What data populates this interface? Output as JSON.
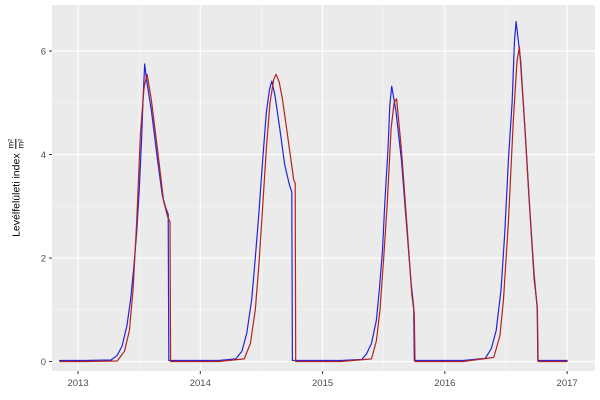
{
  "chart_data": {
    "type": "line",
    "title": "",
    "xlabel": "",
    "ylabel_text": "Levélfelületi index",
    "ylabel_frac_num": "m²",
    "ylabel_frac_den": "m²",
    "x_ticks": [
      2013,
      2014,
      2015,
      2016,
      2017
    ],
    "x_tick_labels": [
      "2013",
      "2014",
      "2015",
      "2016",
      "2017"
    ],
    "x_minor_ticks": [
      2013.5,
      2014.5,
      2015.5,
      2016.5
    ],
    "y_ticks": [
      0,
      2,
      4,
      6
    ],
    "y_tick_labels": [
      "0",
      "2",
      "4",
      "6"
    ],
    "y_minor_ticks": [
      1,
      3,
      5
    ],
    "x_range": [
      2012.787,
      2017.228
    ],
    "y_range": [
      -0.183,
      6.89
    ],
    "grid": true,
    "legend": "none",
    "panel_theme": "ggplot-gray",
    "colors": {
      "panel_bg": "#EBEBEB",
      "grid_major": "#FFFFFF",
      "grid_minor": "#F6F6F6",
      "tick_label": "#4D4D4D",
      "axis_title": "#000000",
      "tick_mark": "#333333",
      "series_blue": "#2323DC",
      "series_red": "#B22222"
    },
    "series": [
      {
        "name": "blue",
        "color": "#2323DC",
        "points": [
          [
            2012.85,
            0.02
          ],
          [
            2013.05,
            0.02
          ],
          [
            2013.27,
            0.03
          ],
          [
            2013.32,
            0.12
          ],
          [
            2013.36,
            0.3
          ],
          [
            2013.4,
            0.7
          ],
          [
            2013.43,
            1.2
          ],
          [
            2013.455,
            1.8
          ],
          [
            2013.48,
            2.5
          ],
          [
            2013.5,
            3.3
          ],
          [
            2013.52,
            4.3
          ],
          [
            2013.532,
            5.1
          ],
          [
            2013.545,
            5.75
          ],
          [
            2013.56,
            5.45
          ],
          [
            2013.6,
            4.85
          ],
          [
            2013.65,
            3.9
          ],
          [
            2013.69,
            3.2
          ],
          [
            2013.72,
            2.95
          ],
          [
            2013.737,
            2.85
          ],
          [
            2013.742,
            0.02
          ],
          [
            2013.95,
            0.02
          ],
          [
            2014.15,
            0.02
          ],
          [
            2014.29,
            0.05
          ],
          [
            2014.34,
            0.2
          ],
          [
            2014.38,
            0.55
          ],
          [
            2014.42,
            1.2
          ],
          [
            2014.45,
            2.0
          ],
          [
            2014.48,
            2.9
          ],
          [
            2014.51,
            3.9
          ],
          [
            2014.54,
            4.8
          ],
          [
            2014.565,
            5.25
          ],
          [
            2014.585,
            5.42
          ],
          [
            2014.61,
            5.15
          ],
          [
            2014.65,
            4.5
          ],
          [
            2014.69,
            3.8
          ],
          [
            2014.73,
            3.4
          ],
          [
            2014.748,
            3.28
          ],
          [
            2014.753,
            0.02
          ],
          [
            2014.95,
            0.02
          ],
          [
            2015.15,
            0.02
          ],
          [
            2015.32,
            0.04
          ],
          [
            2015.36,
            0.15
          ],
          [
            2015.4,
            0.35
          ],
          [
            2015.44,
            0.8
          ],
          [
            2015.465,
            1.4
          ],
          [
            2015.49,
            2.15
          ],
          [
            2015.51,
            3.1
          ],
          [
            2015.535,
            4.1
          ],
          [
            2015.55,
            4.95
          ],
          [
            2015.565,
            5.32
          ],
          [
            2015.6,
            4.85
          ],
          [
            2015.645,
            3.9
          ],
          [
            2015.69,
            2.55
          ],
          [
            2015.725,
            1.5
          ],
          [
            2015.745,
            1.05
          ],
          [
            2015.75,
            0.02
          ],
          [
            2015.95,
            0.02
          ],
          [
            2016.15,
            0.02
          ],
          [
            2016.33,
            0.06
          ],
          [
            2016.38,
            0.25
          ],
          [
            2016.42,
            0.6
          ],
          [
            2016.46,
            1.4
          ],
          [
            2016.49,
            2.5
          ],
          [
            2016.52,
            3.9
          ],
          [
            2016.55,
            5.0
          ],
          [
            2016.57,
            6.2
          ],
          [
            2016.583,
            6.57
          ],
          [
            2016.62,
            5.8
          ],
          [
            2016.66,
            4.3
          ],
          [
            2016.7,
            2.75
          ],
          [
            2016.73,
            1.6
          ],
          [
            2016.755,
            1.07
          ],
          [
            2016.76,
            0.02
          ],
          [
            2016.95,
            0.02
          ],
          [
            2017.0,
            0.02
          ]
        ]
      },
      {
        "name": "red",
        "color": "#B22222",
        "points": [
          [
            2012.85,
            0.0
          ],
          [
            2013.05,
            0.0
          ],
          [
            2013.32,
            0.01
          ],
          [
            2013.38,
            0.2
          ],
          [
            2013.42,
            0.6
          ],
          [
            2013.45,
            1.4
          ],
          [
            2013.48,
            2.7
          ],
          [
            2013.51,
            4.4
          ],
          [
            2013.54,
            5.3
          ],
          [
            2013.565,
            5.55
          ],
          [
            2013.6,
            5.05
          ],
          [
            2013.65,
            4.1
          ],
          [
            2013.7,
            3.1
          ],
          [
            2013.735,
            2.78
          ],
          [
            2013.752,
            2.7
          ],
          [
            2013.757,
            0.0
          ],
          [
            2013.95,
            0.0
          ],
          [
            2014.15,
            0.0
          ],
          [
            2014.36,
            0.05
          ],
          [
            2014.41,
            0.35
          ],
          [
            2014.45,
            1.0
          ],
          [
            2014.48,
            1.9
          ],
          [
            2014.51,
            3.0
          ],
          [
            2014.54,
            4.1
          ],
          [
            2014.57,
            5.0
          ],
          [
            2014.6,
            5.45
          ],
          [
            2014.62,
            5.55
          ],
          [
            2014.645,
            5.4
          ],
          [
            2014.67,
            5.1
          ],
          [
            2014.7,
            4.6
          ],
          [
            2014.735,
            4.0
          ],
          [
            2014.765,
            3.5
          ],
          [
            2014.776,
            3.45
          ],
          [
            2014.78,
            0.0
          ],
          [
            2014.95,
            0.0
          ],
          [
            2015.15,
            0.0
          ],
          [
            2015.4,
            0.05
          ],
          [
            2015.44,
            0.4
          ],
          [
            2015.47,
            1.0
          ],
          [
            2015.5,
            2.0
          ],
          [
            2015.53,
            3.1
          ],
          [
            2015.56,
            4.5
          ],
          [
            2015.585,
            5.0
          ],
          [
            2015.605,
            5.08
          ],
          [
            2015.645,
            4.1
          ],
          [
            2015.69,
            2.65
          ],
          [
            2015.73,
            1.3
          ],
          [
            2015.75,
            0.92
          ],
          [
            2015.756,
            0.0
          ],
          [
            2015.95,
            0.0
          ],
          [
            2016.15,
            0.0
          ],
          [
            2016.4,
            0.08
          ],
          [
            2016.45,
            0.5
          ],
          [
            2016.48,
            1.2
          ],
          [
            2016.52,
            2.7
          ],
          [
            2016.56,
            4.65
          ],
          [
            2016.59,
            5.8
          ],
          [
            2016.61,
            6.08
          ],
          [
            2016.65,
            4.7
          ],
          [
            2016.69,
            3.1
          ],
          [
            2016.73,
            1.7
          ],
          [
            2016.757,
            1.0
          ],
          [
            2016.763,
            0.0
          ],
          [
            2016.95,
            0.0
          ],
          [
            2017.0,
            0.0
          ]
        ]
      }
    ]
  }
}
